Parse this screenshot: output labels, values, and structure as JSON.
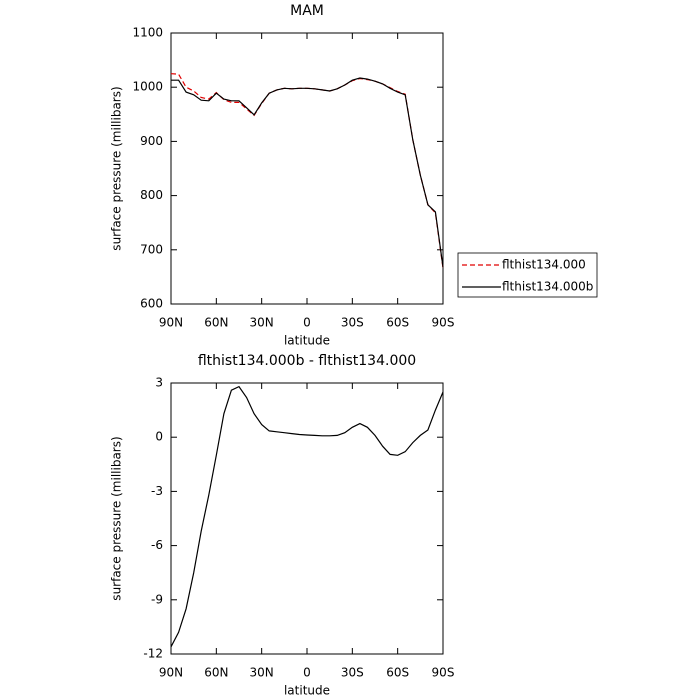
{
  "chart_data": [
    {
      "type": "line",
      "title": "MAM",
      "xlabel": "latitude",
      "ylabel": "surface pressure (millibars)",
      "x": [
        90,
        85,
        80,
        75,
        70,
        65,
        60,
        55,
        50,
        45,
        40,
        35,
        30,
        25,
        20,
        15,
        10,
        5,
        0,
        -5,
        -10,
        -15,
        -20,
        -25,
        -30,
        -35,
        -40,
        -45,
        -50,
        -55,
        -60,
        -65,
        -70,
        -75,
        -80,
        -85,
        -90
      ],
      "series": [
        {
          "name": "flthist134.000",
          "color": "#e00000",
          "dash": "dashed",
          "values": [
            1025,
            1024,
            1000,
            993,
            981,
            978,
            990,
            977,
            972,
            972,
            960,
            948,
            970,
            989,
            995,
            998,
            997,
            998,
            998,
            997,
            995,
            993,
            997,
            1004,
            1012,
            1016,
            1014,
            1011,
            1006,
            999,
            992,
            987,
            903,
            838,
            783,
            768,
            666
          ]
        },
        {
          "name": "flthist134.000b",
          "color": "#000000",
          "dash": "solid",
          "values": [
            1013,
            1013,
            991,
            986,
            976,
            975,
            989,
            978,
            975,
            975,
            962,
            949,
            971,
            989,
            995,
            998,
            997,
            998,
            998,
            997,
            995,
            993,
            997,
            1004,
            1013,
            1017,
            1015,
            1011,
            1006,
            998,
            991,
            986,
            903,
            838,
            783,
            770,
            668
          ]
        }
      ],
      "xlim": [
        90,
        -90
      ],
      "xticks": [
        {
          "value": 90,
          "label": "90N"
        },
        {
          "value": 60,
          "label": "60N"
        },
        {
          "value": 30,
          "label": "30N"
        },
        0,
        {
          "value": -30,
          "label": "30S"
        },
        {
          "value": -60,
          "label": "60S"
        },
        {
          "value": -90,
          "label": "90S"
        }
      ],
      "ylim": [
        600,
        1100
      ],
      "yticks": [
        600,
        700,
        800,
        900,
        1000,
        1100
      ],
      "legend": "right"
    },
    {
      "type": "line",
      "title": "flthist134.000b - flthist134.000",
      "xlabel": "latitude",
      "ylabel": "surface pressure (millibars)",
      "x": [
        90,
        85,
        80,
        75,
        70,
        65,
        60,
        55,
        50,
        45,
        40,
        35,
        30,
        25,
        20,
        15,
        10,
        5,
        0,
        -5,
        -10,
        -15,
        -20,
        -25,
        -30,
        -35,
        -40,
        -45,
        -50,
        -55,
        -60,
        -65,
        -70,
        -75,
        -80,
        -85,
        -90
      ],
      "values": [
        -11.6,
        -10.8,
        -9.5,
        -7.5,
        -5.2,
        -3.2,
        -1,
        1.3,
        2.6,
        2.8,
        2.2,
        1.3,
        0.7,
        0.35,
        0.3,
        0.25,
        0.2,
        0.15,
        0.12,
        0.1,
        0.08,
        0.08,
        0.1,
        0.25,
        0.55,
        0.75,
        0.55,
        0.1,
        -0.5,
        -0.95,
        -1.0,
        -0.8,
        -0.3,
        0.1,
        0.4,
        1.5,
        2.5
      ],
      "color": "#000000",
      "xlim": [
        90,
        -90
      ],
      "xticks": [
        {
          "value": 90,
          "label": "90N"
        },
        {
          "value": 60,
          "label": "60N"
        },
        {
          "value": 30,
          "label": "30N"
        },
        0,
        {
          "value": -30,
          "label": "30S"
        },
        {
          "value": -60,
          "label": "60S"
        },
        {
          "value": -90,
          "label": "90S"
        }
      ],
      "ylim": [
        -12,
        3
      ],
      "yticks": [
        -12,
        -9,
        -6,
        -3,
        0,
        3
      ]
    }
  ]
}
